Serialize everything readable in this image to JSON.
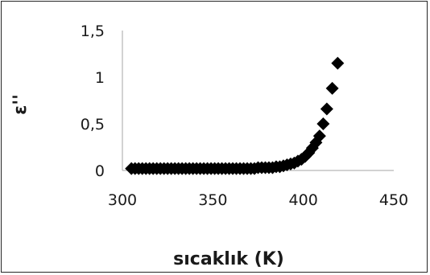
{
  "chart_data": {
    "type": "scatter",
    "title": "",
    "xlabel": "sıcaklık (K)",
    "ylabel": "ε''",
    "xlim": [
      300,
      450
    ],
    "ylim": [
      0,
      1.5
    ],
    "x_ticks": [
      300,
      350,
      400,
      450
    ],
    "y_ticks": [
      {
        "value": 0,
        "label": "0"
      },
      {
        "value": 0.5,
        "label": "0,5"
      },
      {
        "value": 1,
        "label": "1"
      },
      {
        "value": 1.5,
        "label": "1,5"
      }
    ],
    "marker": "diamond",
    "marker_color": "#000000",
    "grid": false,
    "legend": "none",
    "points": [
      [
        305,
        0.02
      ],
      [
        307,
        0.02
      ],
      [
        309,
        0.02
      ],
      [
        311,
        0.02
      ],
      [
        313,
        0.02
      ],
      [
        315,
        0.02
      ],
      [
        317,
        0.02
      ],
      [
        319,
        0.02
      ],
      [
        321,
        0.02
      ],
      [
        323,
        0.02
      ],
      [
        325,
        0.02
      ],
      [
        327,
        0.02
      ],
      [
        329,
        0.02
      ],
      [
        331,
        0.02
      ],
      [
        333,
        0.02
      ],
      [
        335,
        0.02
      ],
      [
        337,
        0.02
      ],
      [
        339,
        0.02
      ],
      [
        341,
        0.02
      ],
      [
        343,
        0.02
      ],
      [
        345,
        0.02
      ],
      [
        347,
        0.02
      ],
      [
        349,
        0.02
      ],
      [
        351,
        0.02
      ],
      [
        353,
        0.02
      ],
      [
        355,
        0.02
      ],
      [
        357,
        0.02
      ],
      [
        359,
        0.02
      ],
      [
        361,
        0.02
      ],
      [
        363,
        0.02
      ],
      [
        365,
        0.02
      ],
      [
        367,
        0.02
      ],
      [
        369,
        0.02
      ],
      [
        371,
        0.02
      ],
      [
        373,
        0.02
      ],
      [
        375,
        0.03
      ],
      [
        377,
        0.03
      ],
      [
        379,
        0.03
      ],
      [
        381,
        0.03
      ],
      [
        383,
        0.03
      ],
      [
        385,
        0.04
      ],
      [
        387,
        0.04
      ],
      [
        389,
        0.05
      ],
      [
        391,
        0.06
      ],
      [
        393,
        0.07
      ],
      [
        395,
        0.08
      ],
      [
        397,
        0.1
      ],
      [
        399,
        0.12
      ],
      [
        401,
        0.15
      ],
      [
        403,
        0.19
      ],
      [
        405,
        0.24
      ],
      [
        407,
        0.3
      ],
      [
        409,
        0.37
      ],
      [
        411,
        0.5
      ],
      [
        413,
        0.66
      ],
      [
        416,
        0.88
      ],
      [
        419,
        1.15
      ]
    ]
  }
}
